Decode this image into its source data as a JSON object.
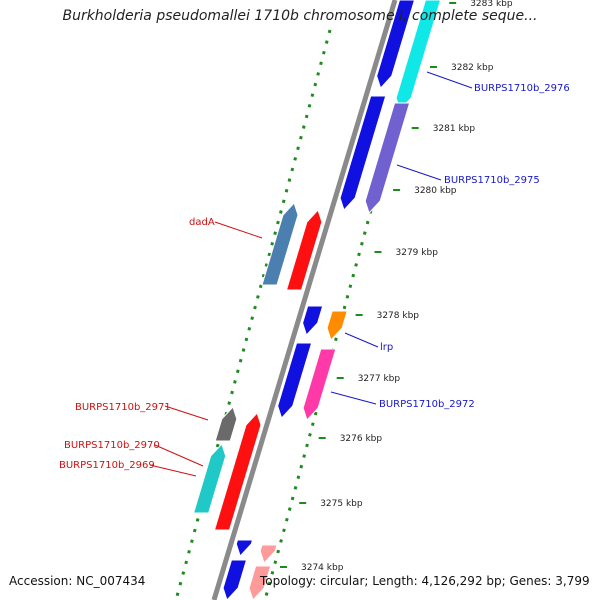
{
  "title": "Burkholderia pseudomallei 1710b chromosome I, complete seque...",
  "footer": {
    "accession": "Accession: NC_007434",
    "topology": "Topology: circular; Length: 4,126,292 bp; Genes: 3,799"
  },
  "colors": {
    "backbone": "#8a8a8a",
    "dots": "#1f8a1f",
    "forward_label": "#d01010",
    "reverse_label": "#1818c8",
    "blue": "#1010e0",
    "cyan": "#10e8e8",
    "purple": "#7060d0",
    "steelblue": "#4a7fb0",
    "red": "#ff1010",
    "orange": "#ff8c00",
    "pink": "#ff3aa8",
    "gray": "#6a6a6a",
    "teal": "#20c8c8",
    "salmon": "#ff9a9a"
  },
  "ticks": [
    "3283 kbp",
    "3282 kbp",
    "3281 kbp",
    "3280 kbp",
    "3279 kbp",
    "3278 kbp",
    "3277 kbp",
    "3276 kbp",
    "3275 kbp",
    "3274 kbp"
  ],
  "labels": {
    "left": [
      "dadA",
      "BURPS1710b_2971",
      "BURPS1710b_2970",
      "BURPS1710b_2969"
    ],
    "right": [
      "BURPS1710b_2976",
      "BURPS1710b_2975",
      "lrp",
      "BURPS1710b_2972"
    ]
  },
  "genes": [
    {
      "strand": "reverse",
      "lane": "right-inner",
      "color": "blue"
    },
    {
      "strand": "reverse",
      "lane": "right-outer",
      "color": "cyan"
    },
    {
      "strand": "reverse",
      "lane": "right-inner",
      "color": "blue"
    },
    {
      "strand": "reverse",
      "lane": "right-outer",
      "color": "purple"
    },
    {
      "strand": "forward",
      "lane": "left-outer",
      "color": "steelblue"
    },
    {
      "strand": "forward",
      "lane": "left-inner",
      "color": "red"
    },
    {
      "strand": "reverse",
      "lane": "right-inner",
      "color": "blue"
    },
    {
      "strand": "reverse",
      "lane": "right-outer",
      "color": "orange"
    },
    {
      "strand": "reverse",
      "lane": "right-inner",
      "color": "blue"
    },
    {
      "strand": "reverse",
      "lane": "right-outer",
      "color": "pink"
    },
    {
      "strand": "forward",
      "lane": "left-outer",
      "color": "gray"
    },
    {
      "strand": "forward",
      "lane": "left-inner",
      "color": "red"
    },
    {
      "strand": "forward",
      "lane": "left-outer",
      "color": "teal"
    },
    {
      "strand": "reverse",
      "lane": "right-inner",
      "color": "blue"
    },
    {
      "strand": "reverse",
      "lane": "right-outer",
      "color": "salmon"
    },
    {
      "strand": "reverse",
      "lane": "right-inner",
      "color": "blue"
    },
    {
      "strand": "reverse",
      "lane": "right-outer",
      "color": "salmon"
    }
  ]
}
